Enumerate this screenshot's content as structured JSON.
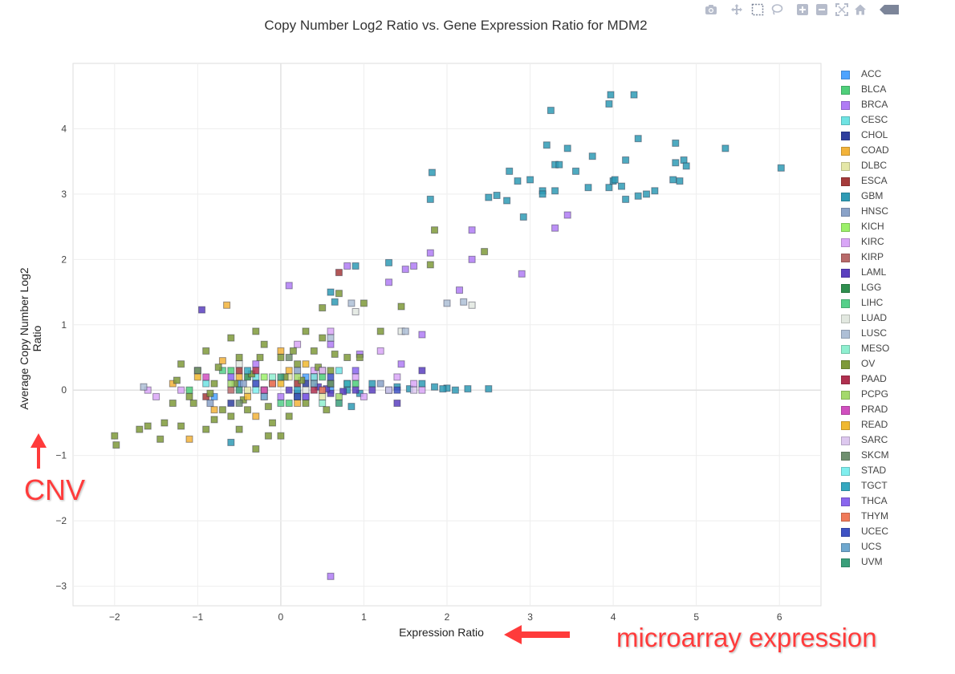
{
  "toolbar": {
    "icons": [
      "camera-icon",
      "pan-icon",
      "box-select-icon",
      "lasso-icon",
      "zoom-in-icon",
      "zoom-out-icon",
      "autoscale-icon",
      "home-icon",
      "collapse-icon"
    ]
  },
  "annotations": {
    "cnv": "CNV",
    "microarray": "microarray expression",
    "arrow_color": "#ff3b3b"
  },
  "chart_data": {
    "type": "scatter",
    "title": "Copy Number Log2 Ratio vs. Gene Expression Ratio for MDM2",
    "xlabel": "Expression Ratio",
    "ylabel": "Average Copy Number Log2 Ratio",
    "xlim": [
      -2.5,
      6.5
    ],
    "ylim": [
      -3.3,
      5.0
    ],
    "xticks": [
      -2,
      -1,
      0,
      1,
      2,
      3,
      4,
      5,
      6
    ],
    "yticks": [
      -3,
      -2,
      -1,
      0,
      1,
      2,
      3,
      4
    ],
    "grid": true,
    "legend_position": "right",
    "series": [
      {
        "name": "ACC",
        "color": "#4da3ff",
        "points": [
          [
            -0.5,
            0.1
          ],
          [
            0.3,
            0.2
          ],
          [
            -0.8,
            -0.1
          ],
          [
            0.6,
            0.0
          ]
        ]
      },
      {
        "name": "BLCA",
        "color": "#4fcf7a",
        "points": [
          [
            -0.6,
            0.3
          ],
          [
            0.1,
            -0.2
          ],
          [
            0.5,
            0.2
          ],
          [
            -1.1,
            0.0
          ],
          [
            0.9,
            0.1
          ]
        ]
      },
      {
        "name": "BRCA",
        "color": "#b07cf5",
        "points": [
          [
            0.4,
            0.2
          ],
          [
            0.8,
            1.9
          ],
          [
            0.1,
            1.6
          ],
          [
            1.5,
            1.85
          ],
          [
            1.8,
            2.1
          ],
          [
            2.3,
            2.45
          ],
          [
            2.9,
            1.78
          ],
          [
            3.3,
            2.48
          ],
          [
            3.45,
            2.68
          ],
          [
            2.15,
            1.53
          ],
          [
            1.3,
            1.65
          ],
          [
            0.6,
            -2.85
          ],
          [
            0.95,
            0.55
          ],
          [
            1.6,
            1.9
          ],
          [
            -0.3,
            0.4
          ],
          [
            0.0,
            -0.1
          ],
          [
            0.6,
            0.7
          ],
          [
            1.7,
            0.85
          ],
          [
            2.3,
            2.0
          ],
          [
            1.45,
            0.4
          ]
        ]
      },
      {
        "name": "CESC",
        "color": "#6fe3e3",
        "points": [
          [
            -0.3,
            0.2
          ],
          [
            0.2,
            -0.1
          ],
          [
            0.7,
            0.3
          ],
          [
            -0.9,
            0.1
          ]
        ]
      },
      {
        "name": "CHOL",
        "color": "#2f3f9e",
        "points": [
          [
            -0.2,
            0.0
          ],
          [
            0.3,
            0.1
          ],
          [
            -0.6,
            -0.2
          ]
        ]
      },
      {
        "name": "COAD",
        "color": "#f2b33a",
        "points": [
          [
            -0.65,
            1.3
          ],
          [
            -1.1,
            -0.75
          ],
          [
            -0.5,
            0.2
          ],
          [
            -0.2,
            0.0
          ],
          [
            0.1,
            0.3
          ],
          [
            -0.8,
            -0.3
          ],
          [
            0.4,
            0.1
          ],
          [
            -0.3,
            -0.4
          ],
          [
            -1.3,
            0.1
          ],
          [
            0.2,
            -0.2
          ],
          [
            -0.7,
            0.45
          ],
          [
            0.0,
            0.6
          ]
        ]
      },
      {
        "name": "DLBC",
        "color": "#e4e7a8",
        "points": [
          [
            -0.4,
            0.0
          ],
          [
            0.1,
            0.2
          ],
          [
            0.5,
            -0.1
          ]
        ]
      },
      {
        "name": "ESCA",
        "color": "#a53a3a",
        "points": [
          [
            0.7,
            1.8
          ],
          [
            -0.5,
            0.3
          ],
          [
            0.2,
            0.1
          ],
          [
            -0.9,
            -0.1
          ]
        ]
      },
      {
        "name": "GBM",
        "color": "#2f9bb5",
        "points": [
          [
            3.25,
            4.28
          ],
          [
            3.95,
            4.38
          ],
          [
            3.97,
            4.52
          ],
          [
            4.25,
            4.52
          ],
          [
            3.2,
            3.75
          ],
          [
            3.45,
            3.7
          ],
          [
            4.3,
            3.85
          ],
          [
            4.75,
            3.78
          ],
          [
            5.35,
            3.7
          ],
          [
            3.75,
            3.58
          ],
          [
            4.15,
            3.52
          ],
          [
            4.75,
            3.48
          ],
          [
            4.85,
            3.52
          ],
          [
            4.88,
            3.43
          ],
          [
            3.3,
            3.45
          ],
          [
            3.35,
            3.45
          ],
          [
            3.55,
            3.35
          ],
          [
            2.75,
            3.35
          ],
          [
            2.85,
            3.2
          ],
          [
            3.0,
            3.22
          ],
          [
            3.95,
            3.1
          ],
          [
            4.0,
            3.2
          ],
          [
            4.02,
            3.22
          ],
          [
            4.1,
            3.12
          ],
          [
            3.7,
            3.1
          ],
          [
            3.15,
            3.05
          ],
          [
            3.3,
            3.05
          ],
          [
            6.02,
            3.4
          ],
          [
            4.72,
            3.22
          ],
          [
            4.8,
            3.2
          ],
          [
            4.3,
            2.97
          ],
          [
            4.4,
            3.0
          ],
          [
            4.5,
            3.05
          ],
          [
            4.15,
            2.92
          ],
          [
            2.5,
            2.95
          ],
          [
            2.6,
            2.98
          ],
          [
            2.72,
            2.9
          ],
          [
            2.92,
            2.65
          ],
          [
            3.15,
            3.0
          ],
          [
            1.82,
            3.33
          ],
          [
            1.8,
            2.92
          ],
          [
            1.3,
            1.95
          ],
          [
            0.6,
            1.5
          ],
          [
            0.65,
            1.35
          ],
          [
            0.9,
            1.9
          ],
          [
            2.5,
            0.02
          ],
          [
            2.25,
            0.02
          ],
          [
            2.0,
            0.03
          ],
          [
            1.85,
            0.05
          ],
          [
            1.95,
            0.02
          ],
          [
            0.8,
            0.0
          ],
          [
            -0.6,
            -0.8
          ],
          [
            1.7,
            0.1
          ],
          [
            0.95,
            -0.05
          ],
          [
            1.3,
            0.0
          ],
          [
            1.1,
            0.1
          ],
          [
            0.85,
            -0.25
          ],
          [
            1.4,
            0.05
          ],
          [
            1.55,
            0.02
          ],
          [
            2.1,
            0.0
          ]
        ]
      },
      {
        "name": "HNSC",
        "color": "#8aa2c8",
        "points": [
          [
            -0.45,
            0.1
          ],
          [
            0.2,
            0.3
          ],
          [
            -0.85,
            -0.2
          ],
          [
            0.5,
            0.0
          ],
          [
            1.2,
            0.1
          ]
        ]
      },
      {
        "name": "KICH",
        "color": "#9cf06a",
        "points": [
          [
            -0.2,
            0.2
          ],
          [
            0.3,
            -0.1
          ]
        ]
      },
      {
        "name": "KIRC",
        "color": "#d9a6f7",
        "points": [
          [
            0.6,
            0.9
          ],
          [
            1.2,
            0.6
          ],
          [
            0.4,
            0.3
          ],
          [
            -1.2,
            0.0
          ],
          [
            0.9,
            0.2
          ],
          [
            1.6,
            0.1
          ],
          [
            1.7,
            0.0
          ],
          [
            1.4,
            0.2
          ],
          [
            -1.6,
            0.0
          ],
          [
            -1.5,
            -0.1
          ],
          [
            1.0,
            -0.1
          ],
          [
            0.2,
            0.7
          ]
        ]
      },
      {
        "name": "KIRP",
        "color": "#b86a6a",
        "points": [
          [
            -0.1,
            0.1
          ],
          [
            0.4,
            0.2
          ],
          [
            -0.6,
            0.0
          ]
        ]
      },
      {
        "name": "LAML",
        "color": "#5a3fbf",
        "points": [
          [
            -0.95,
            1.23
          ],
          [
            0.1,
            0.0
          ],
          [
            0.6,
            -0.05
          ],
          [
            1.7,
            0.3
          ],
          [
            1.4,
            -0.2
          ],
          [
            0.3,
            -0.1
          ],
          [
            0.9,
            0.0
          ],
          [
            1.1,
            0.0
          ],
          [
            0.45,
            0.05
          ],
          [
            0.75,
            -0.02
          ],
          [
            0.2,
            -0.05
          ],
          [
            0.55,
            0.02
          ]
        ]
      },
      {
        "name": "LGG",
        "color": "#2f8f4f",
        "points": [
          [
            0.2,
            -0.1
          ],
          [
            -0.4,
            0.2
          ],
          [
            0.6,
            0.1
          ]
        ]
      },
      {
        "name": "LIHC",
        "color": "#55d08a",
        "points": [
          [
            -0.7,
            0.3
          ],
          [
            0.0,
            -0.2
          ],
          [
            0.8,
            0.1
          ]
        ]
      },
      {
        "name": "LUAD",
        "color": "#e2e8e0",
        "points": [
          [
            0.9,
            1.2
          ],
          [
            -0.5,
            0.4
          ],
          [
            0.3,
            0.0
          ],
          [
            1.45,
            0.9
          ],
          [
            2.3,
            1.3
          ]
        ]
      },
      {
        "name": "LUSC",
        "color": "#aebfd6",
        "points": [
          [
            0.85,
            1.33
          ],
          [
            -0.3,
            0.1
          ],
          [
            1.5,
            0.9
          ],
          [
            2.2,
            1.35
          ],
          [
            2.0,
            1.33
          ],
          [
            -1.65,
            0.05
          ],
          [
            0.6,
            0.8
          ]
        ]
      },
      {
        "name": "MESO",
        "color": "#8fefd0",
        "points": [
          [
            -0.1,
            0.2
          ],
          [
            0.5,
            -0.2
          ]
        ]
      },
      {
        "name": "OV",
        "color": "#7f9a3a",
        "points": [
          [
            -2.0,
            -0.7
          ],
          [
            -1.98,
            -0.84
          ],
          [
            -1.6,
            -0.55
          ],
          [
            -1.45,
            -0.75
          ],
          [
            -1.2,
            -0.55
          ],
          [
            -0.3,
            -0.9
          ],
          [
            -0.15,
            -0.7
          ],
          [
            0.0,
            -0.7
          ],
          [
            -0.6,
            -0.4
          ],
          [
            -0.9,
            -0.6
          ],
          [
            -1.3,
            -0.2
          ],
          [
            -1.1,
            -0.1
          ],
          [
            -0.8,
            0.1
          ],
          [
            -0.5,
            0.5
          ],
          [
            -0.3,
            0.9
          ],
          [
            -0.2,
            0.7
          ],
          [
            0.0,
            0.5
          ],
          [
            0.2,
            0.4
          ],
          [
            0.4,
            0.6
          ],
          [
            0.5,
            0.8
          ],
          [
            0.7,
            1.48
          ],
          [
            1.0,
            1.33
          ],
          [
            1.45,
            1.28
          ],
          [
            1.85,
            2.45
          ],
          [
            2.45,
            2.12
          ],
          [
            1.8,
            1.92
          ],
          [
            0.5,
            1.26
          ],
          [
            -0.7,
            -0.3
          ],
          [
            -1.0,
            0.3
          ],
          [
            -1.2,
            0.4
          ],
          [
            -0.4,
            -0.3
          ],
          [
            0.1,
            -0.4
          ],
          [
            0.3,
            -0.2
          ],
          [
            0.6,
            0.3
          ],
          [
            0.8,
            0.5
          ],
          [
            -0.9,
            0.6
          ],
          [
            -0.6,
            0.8
          ],
          [
            -0.25,
            0.5
          ],
          [
            0.15,
            0.6
          ],
          [
            -1.4,
            -0.5
          ],
          [
            -1.7,
            -0.6
          ],
          [
            -0.1,
            -0.5
          ],
          [
            -0.5,
            -0.6
          ],
          [
            0.3,
            0.9
          ],
          [
            0.95,
            0.5
          ],
          [
            1.2,
            0.9
          ],
          [
            -0.8,
            -0.45
          ],
          [
            -1.05,
            -0.2
          ],
          [
            0.05,
            0.2
          ],
          [
            -0.35,
            0.25
          ],
          [
            -0.55,
            0.1
          ],
          [
            0.25,
            0.15
          ],
          [
            0.45,
            0.35
          ],
          [
            -0.75,
            0.35
          ],
          [
            -0.15,
            -0.25
          ],
          [
            0.65,
            0.55
          ],
          [
            -1.25,
            0.15
          ],
          [
            -0.45,
            -0.15
          ],
          [
            0.55,
            -0.3
          ],
          [
            -0.85,
            -0.05
          ]
        ]
      },
      {
        "name": "PAAD",
        "color": "#b0304f",
        "points": [
          [
            -0.3,
            0.3
          ],
          [
            0.4,
            0.0
          ]
        ]
      },
      {
        "name": "PCPG",
        "color": "#a4d96c",
        "points": [
          [
            -0.6,
            0.1
          ],
          [
            0.2,
            0.2
          ],
          [
            0.7,
            -0.1
          ]
        ]
      },
      {
        "name": "PRAD",
        "color": "#d04fbf",
        "points": [
          [
            -0.2,
            0.0
          ],
          [
            0.5,
            0.3
          ],
          [
            -0.9,
            0.2
          ]
        ]
      },
      {
        "name": "READ",
        "color": "#f0b830",
        "points": [
          [
            -0.4,
            -0.1
          ],
          [
            0.3,
            0.4
          ],
          [
            -1.0,
            0.2
          ],
          [
            0.0,
            0.1
          ]
        ]
      },
      {
        "name": "SARC",
        "color": "#ddc8ef",
        "points": [
          [
            0.5,
            0.3
          ],
          [
            -0.2,
            -0.1
          ],
          [
            1.3,
            0.0
          ],
          [
            1.6,
            0.0
          ]
        ]
      },
      {
        "name": "SKCM",
        "color": "#6f8f6f",
        "points": [
          [
            -0.5,
            -0.2
          ],
          [
            0.1,
            0.5
          ],
          [
            0.6,
            0.1
          ],
          [
            -1.0,
            0.3
          ]
        ]
      },
      {
        "name": "STAD",
        "color": "#7feeee",
        "points": [
          [
            -0.3,
            0.0
          ],
          [
            0.4,
            0.2
          ]
        ]
      },
      {
        "name": "TGCT",
        "color": "#35a8c0",
        "points": [
          [
            0.2,
            0.0
          ],
          [
            -0.4,
            0.3
          ],
          [
            0.8,
            0.1
          ]
        ]
      },
      {
        "name": "THCA",
        "color": "#8a66ee",
        "points": [
          [
            -0.6,
            0.2
          ],
          [
            0.3,
            -0.1
          ],
          [
            0.9,
            0.3
          ]
        ]
      },
      {
        "name": "THYM",
        "color": "#f07a5a",
        "points": [
          [
            -0.1,
            0.1
          ],
          [
            0.5,
            0.0
          ]
        ]
      },
      {
        "name": "UCEC",
        "color": "#3f52c4",
        "points": [
          [
            -0.3,
            0.1
          ],
          [
            0.2,
            -0.1
          ],
          [
            0.6,
            0.2
          ],
          [
            1.4,
            0.0
          ]
        ]
      },
      {
        "name": "UCS",
        "color": "#6fa8cf",
        "points": [
          [
            -0.2,
            -0.1
          ],
          [
            0.4,
            0.1
          ]
        ]
      },
      {
        "name": "UVM",
        "color": "#3a9f7a",
        "points": [
          [
            0.0,
            0.2
          ],
          [
            -0.5,
            0.0
          ],
          [
            0.7,
            -0.2
          ]
        ]
      }
    ]
  }
}
